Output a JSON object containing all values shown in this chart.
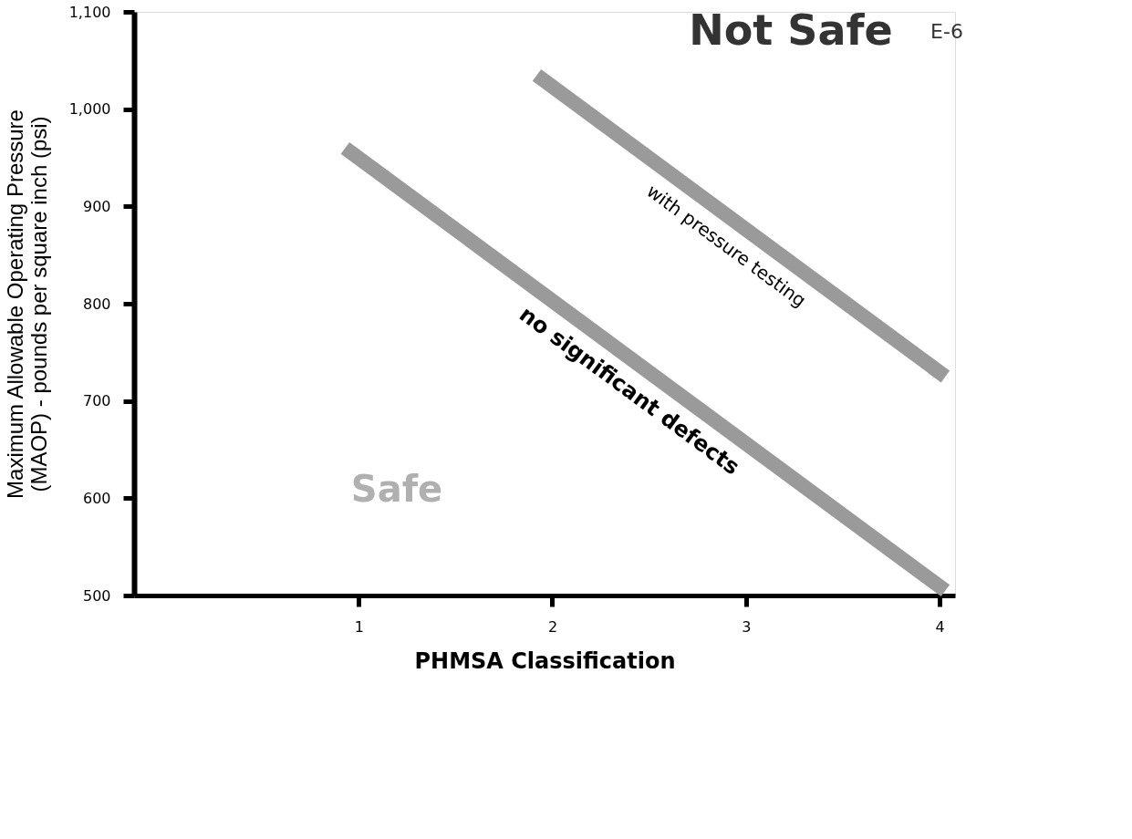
{
  "chart_data": {
    "type": "line",
    "xlabel": "PHMSA Classification",
    "ylabel": "Maximum Allowable Operating Pressure\n(MAOP) - pounds per square inch (psi)",
    "series": [
      {
        "name": "no significant defects",
        "color": "#9a9a9a",
        "x": [
          0.93,
          4.03
        ],
        "values": [
          960,
          505
        ]
      },
      {
        "name": "with pressure testing",
        "color": "#9a9a9a",
        "x": [
          1.92,
          4.03
        ],
        "values": [
          1035,
          725
        ]
      }
    ],
    "xlim": [
      -0.16,
      4.08
    ],
    "ylim": [
      500,
      1100
    ],
    "xticks": [
      1,
      2,
      3,
      4
    ],
    "yticks": [
      500,
      600,
      700,
      800,
      900,
      {
        "value": 1000,
        "label": "1,000"
      },
      {
        "value": 1100,
        "label": "1,100"
      }
    ],
    "grid": false,
    "marker": "none",
    "line_style": "solid",
    "annotations": [
      "Not Safe",
      "Safe",
      "E-6"
    ]
  }
}
